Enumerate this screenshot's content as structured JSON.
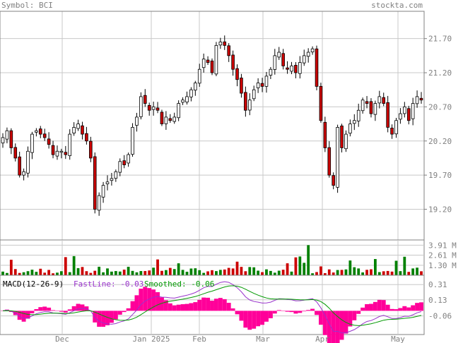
{
  "header": {
    "symbol_label": "Symbol: BCI",
    "site": "stockta.com"
  },
  "colors": {
    "up_candle": "#ffffff",
    "down_candle": "#cc0000",
    "up_volume": "#008000",
    "down_volume": "#cc0000",
    "histogram": "#ff0099",
    "fastline": "#9933cc",
    "smoothed": "#009900",
    "grid": "#c8c8c8",
    "label": "#808080"
  },
  "macd_legend": {
    "title": "MACD(12-26-9)",
    "fast": "FastLine: -0.03",
    "smooth": "Smoothed: -0.06"
  },
  "chart_data": [
    {
      "type": "candlestick",
      "title": "Symbol: BCI",
      "x_labels": [
        "Dec",
        "Jan 2025",
        "Feb",
        "Mar",
        "Apr",
        "May"
      ],
      "y_ticks": [
        "21.70",
        "21.20",
        "20.70",
        "20.20",
        "19.70",
        "19.20"
      ],
      "y_range": [
        18.75,
        22.1
      ],
      "grid": true,
      "closes": [
        20.25,
        20.35,
        20.1,
        19.95,
        19.7,
        19.75,
        20.05,
        20.3,
        20.35,
        20.3,
        20.25,
        20.15,
        20.0,
        20.05,
        20.05,
        20.0,
        20.3,
        20.4,
        20.45,
        20.3,
        20.2,
        19.95,
        19.2,
        19.4,
        19.55,
        19.6,
        19.65,
        19.75,
        19.9,
        19.85,
        20.0,
        20.4,
        20.55,
        20.85,
        20.75,
        20.65,
        20.7,
        20.65,
        20.45,
        20.55,
        20.5,
        20.55,
        20.75,
        20.8,
        20.85,
        20.95,
        21.05,
        21.25,
        21.4,
        21.35,
        21.2,
        21.6,
        21.65,
        21.6,
        21.45,
        21.25,
        21.1,
        20.9,
        20.65,
        20.8,
        20.95,
        21.05,
        21.0,
        21.15,
        21.25,
        21.45,
        21.5,
        21.3,
        21.25,
        21.3,
        21.2,
        21.35,
        21.45,
        21.5,
        21.55,
        21.0,
        20.5,
        20.1,
        19.7,
        19.55,
        20.4,
        20.1,
        20.3,
        20.45,
        20.5,
        20.65,
        20.8,
        20.75,
        20.6,
        20.75,
        20.85,
        20.75,
        20.4,
        20.3,
        20.5,
        20.6,
        20.7,
        20.5,
        20.75,
        20.85,
        20.8
      ],
      "volume_ticks": [
        "3.91 M",
        "2.61 M",
        "1.30 M"
      ],
      "macd_ticks": [
        "0.31",
        "0.13",
        "-0.06"
      ],
      "macd_fast_last": -0.03,
      "macd_smoothed_last": -0.06
    }
  ]
}
